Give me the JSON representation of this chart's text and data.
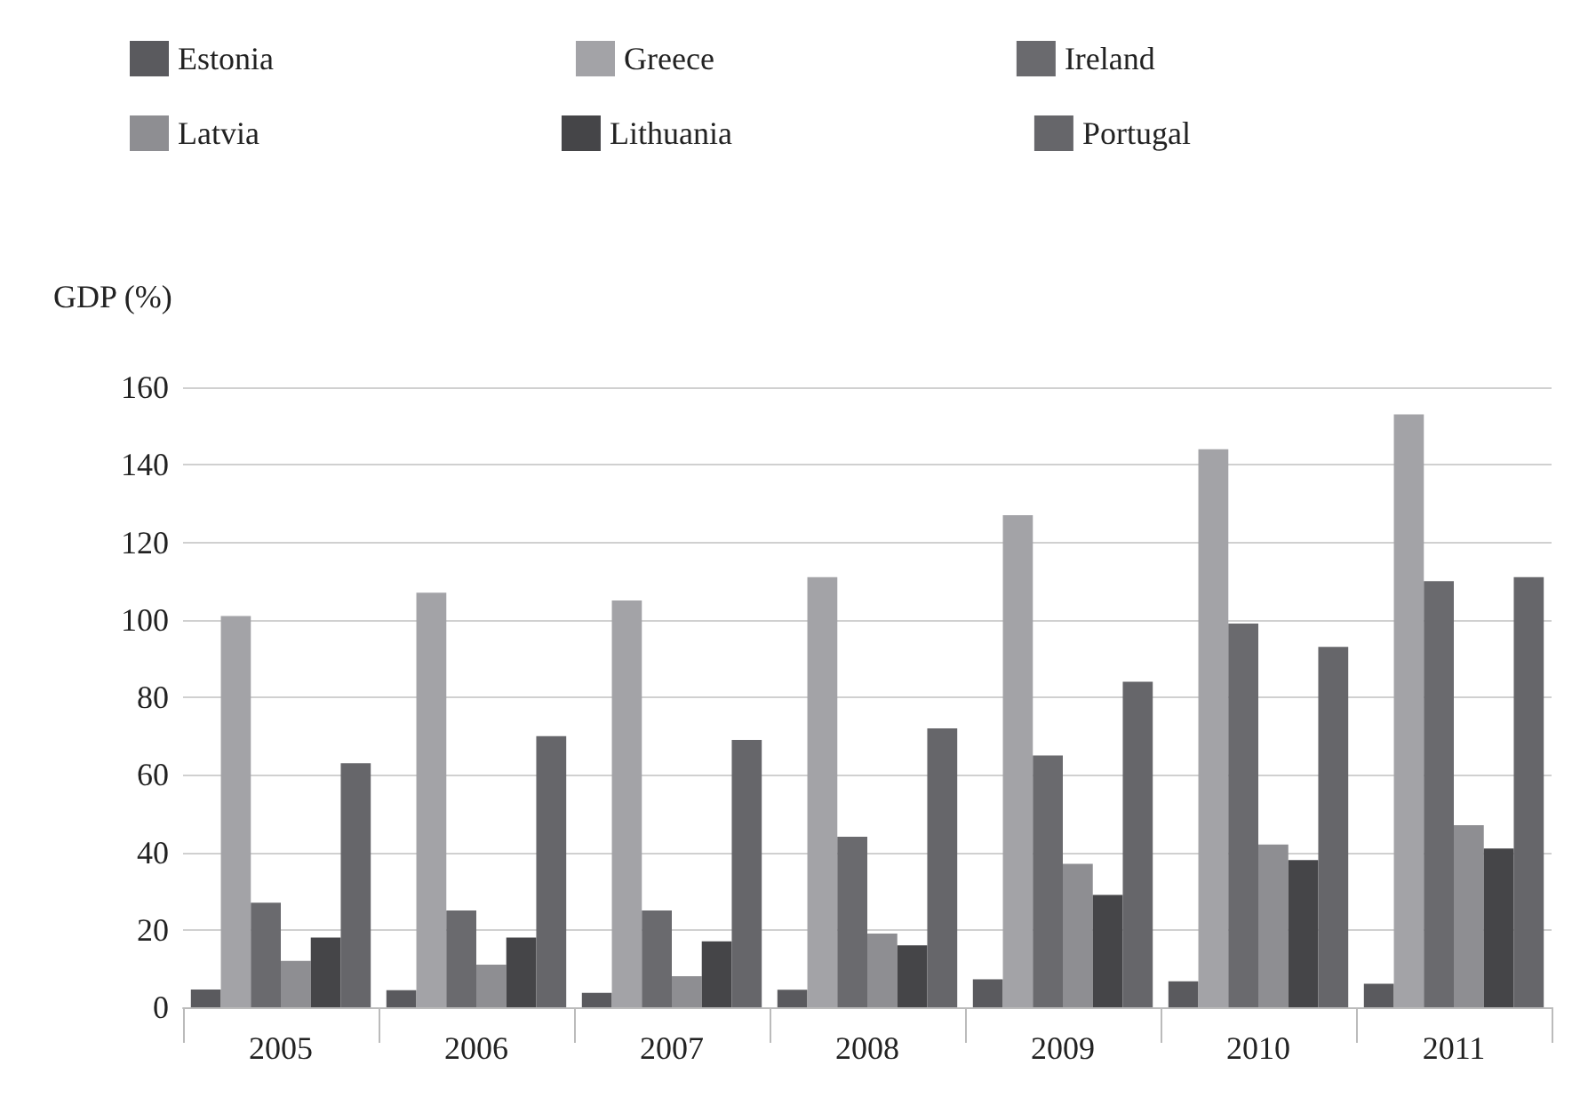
{
  "chart_data": {
    "type": "bar",
    "ylabel": "GDP (%)",
    "categories": [
      "2005",
      "2006",
      "2007",
      "2008",
      "2009",
      "2010",
      "2011"
    ],
    "series": [
      {
        "name": "Estonia",
        "color": "#5a5a5e",
        "values": [
          4.6,
          4.4,
          3.7,
          4.5,
          7.2,
          6.7,
          6.1
        ]
      },
      {
        "name": "Greece",
        "color": "#a3a3a7",
        "values": [
          101,
          107,
          105,
          111,
          127,
          144,
          153
        ]
      },
      {
        "name": "Ireland",
        "color": "#6a6a6e",
        "values": [
          27,
          25,
          25,
          44,
          65,
          99,
          110
        ]
      },
      {
        "name": "Latvia",
        "color": "#8e8e92",
        "values": [
          12,
          11,
          8,
          19,
          37,
          42,
          47
        ]
      },
      {
        "name": "Lithuania",
        "color": "#454548",
        "values": [
          18,
          18,
          17,
          16,
          29,
          38,
          41
        ]
      },
      {
        "name": "Portugal",
        "color": "#66666a",
        "values": [
          63,
          70,
          69,
          72,
          84,
          93,
          111
        ]
      }
    ],
    "ylim": [
      0,
      160
    ],
    "yticks": [
      0,
      20,
      40,
      60,
      80,
      100,
      120,
      140,
      160
    ],
    "grid": "y",
    "legend": "top"
  }
}
